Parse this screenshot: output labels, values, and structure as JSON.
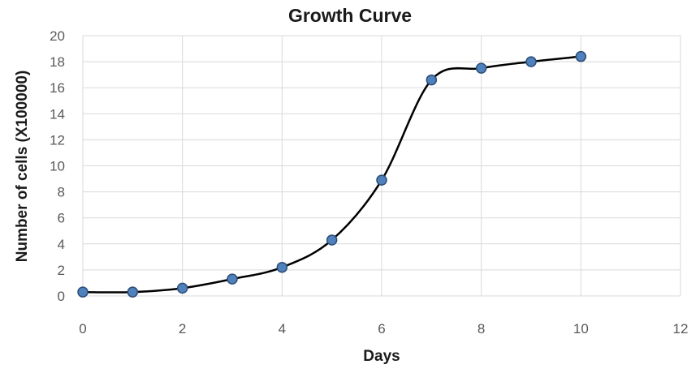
{
  "chart_data": {
    "type": "line",
    "title": "Growth Curve",
    "xlabel": "Days",
    "ylabel": "Number of cells (X100000)",
    "xlim": [
      0,
      12
    ],
    "ylim": [
      0,
      20
    ],
    "x_ticks": [
      "0",
      "2",
      "4",
      "6",
      "8",
      "10",
      "12"
    ],
    "y_ticks": [
      "0",
      "2",
      "4",
      "6",
      "8",
      "10",
      "12",
      "14",
      "16",
      "18",
      "20"
    ],
    "grid": true,
    "legend": "none",
    "series": [
      {
        "x": [
          0,
          1,
          2,
          3,
          4,
          5,
          6,
          7,
          8,
          9,
          10
        ],
        "y": [
          0.3,
          0.3,
          0.6,
          1.3,
          2.2,
          4.3,
          8.9,
          16.6,
          17.5,
          18.0,
          18.4
        ],
        "line_color": "#000000",
        "marker_fill": "#4F81BD",
        "marker_stroke": "#2C4D75"
      }
    ],
    "gridline_color": "#D9D9D9"
  }
}
